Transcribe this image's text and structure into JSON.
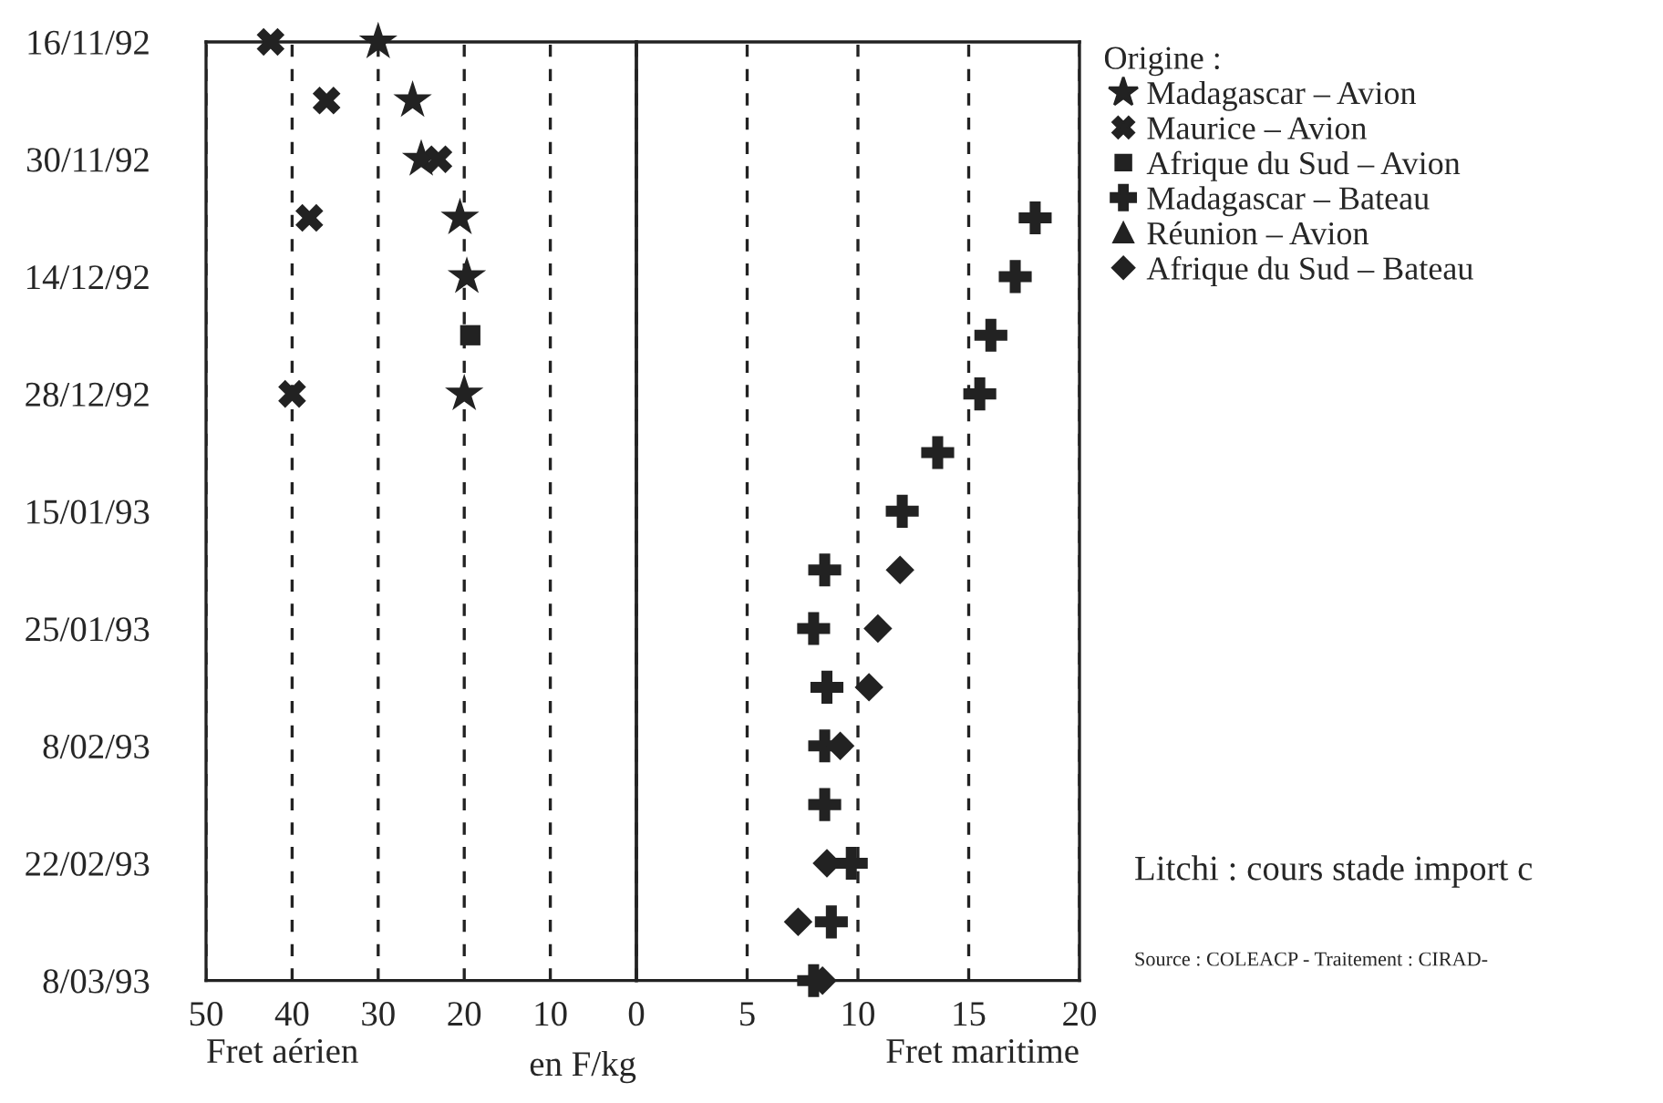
{
  "chart_data": [
    {
      "type": "scatter",
      "orientation": "horizontal",
      "xlabel": "Fret aérien",
      "annotations": [
        "en F/kg"
      ],
      "categories": [
        "16/11/92",
        null,
        "30/11/92",
        null,
        "14/12/92",
        null,
        "28/12/92",
        null,
        "15/01/93",
        null,
        "25/01/93",
        null,
        "8/02/93",
        null,
        "22/02/93",
        null,
        "8/03/93"
      ],
      "xlim": [
        50,
        0
      ],
      "xticks": [
        50,
        40,
        30,
        20,
        10,
        0
      ],
      "grid": "x",
      "line_style": "dashed",
      "legend": "right",
      "series": [
        {
          "name": "Madagascar – Avion",
          "color": "#222222",
          "marker": "star",
          "values": [
            30,
            26,
            25,
            20.5,
            19.7,
            null,
            20,
            null,
            null,
            null,
            null,
            null,
            null,
            null,
            null,
            null,
            null
          ]
        },
        {
          "name": "Maurice – Avion",
          "color": "#222222",
          "marker": "cross",
          "values": [
            42.5,
            36,
            23,
            38,
            null,
            null,
            40,
            null,
            null,
            null,
            null,
            null,
            null,
            null,
            null,
            null,
            null
          ]
        },
        {
          "name": "Afrique du Sud – Avion",
          "color": "#222222",
          "marker": "square",
          "values": [
            null,
            null,
            null,
            null,
            null,
            19.3,
            null,
            null,
            null,
            null,
            null,
            null,
            null,
            null,
            null,
            null,
            null
          ]
        }
      ]
    },
    {
      "type": "scatter",
      "orientation": "horizontal",
      "xlabel": "Fret maritime",
      "tick_labels": "x",
      "legend_title": "Origine :",
      "annotations": [
        "Litchi : cours stade import c",
        "Source : COLEACP - Traitement : CIRAD-"
      ],
      "xlim": [
        0,
        20
      ],
      "xticks": [
        {
          "value": 0,
          "label": null
        },
        5,
        10,
        15,
        20
      ],
      "grid": "x",
      "line_style": "dashed",
      "legend": "right",
      "series": [
        {
          "name": "Madagascar – Bateau",
          "color": "#222222",
          "marker": "plus",
          "values": [
            null,
            null,
            null,
            18,
            17.1,
            16,
            15.5,
            13.6,
            12,
            8.5,
            8,
            8.6,
            8.5,
            8.5,
            9.7,
            8.8,
            8
          ]
        },
        {
          "name": "Réunion – Avion",
          "color": "#222222",
          "marker": "triangle",
          "values": [
            null,
            null,
            null,
            null,
            null,
            null,
            null,
            null,
            null,
            null,
            null,
            null,
            null,
            null,
            null,
            null,
            null
          ]
        },
        {
          "name": "Afrique du Sud – Bateau",
          "color": "#222222",
          "marker": "diamond",
          "values": [
            null,
            null,
            null,
            null,
            null,
            null,
            null,
            null,
            null,
            11.9,
            10.9,
            10.5,
            9.2,
            null,
            8.6,
            7.3,
            8.4
          ]
        }
      ]
    }
  ]
}
